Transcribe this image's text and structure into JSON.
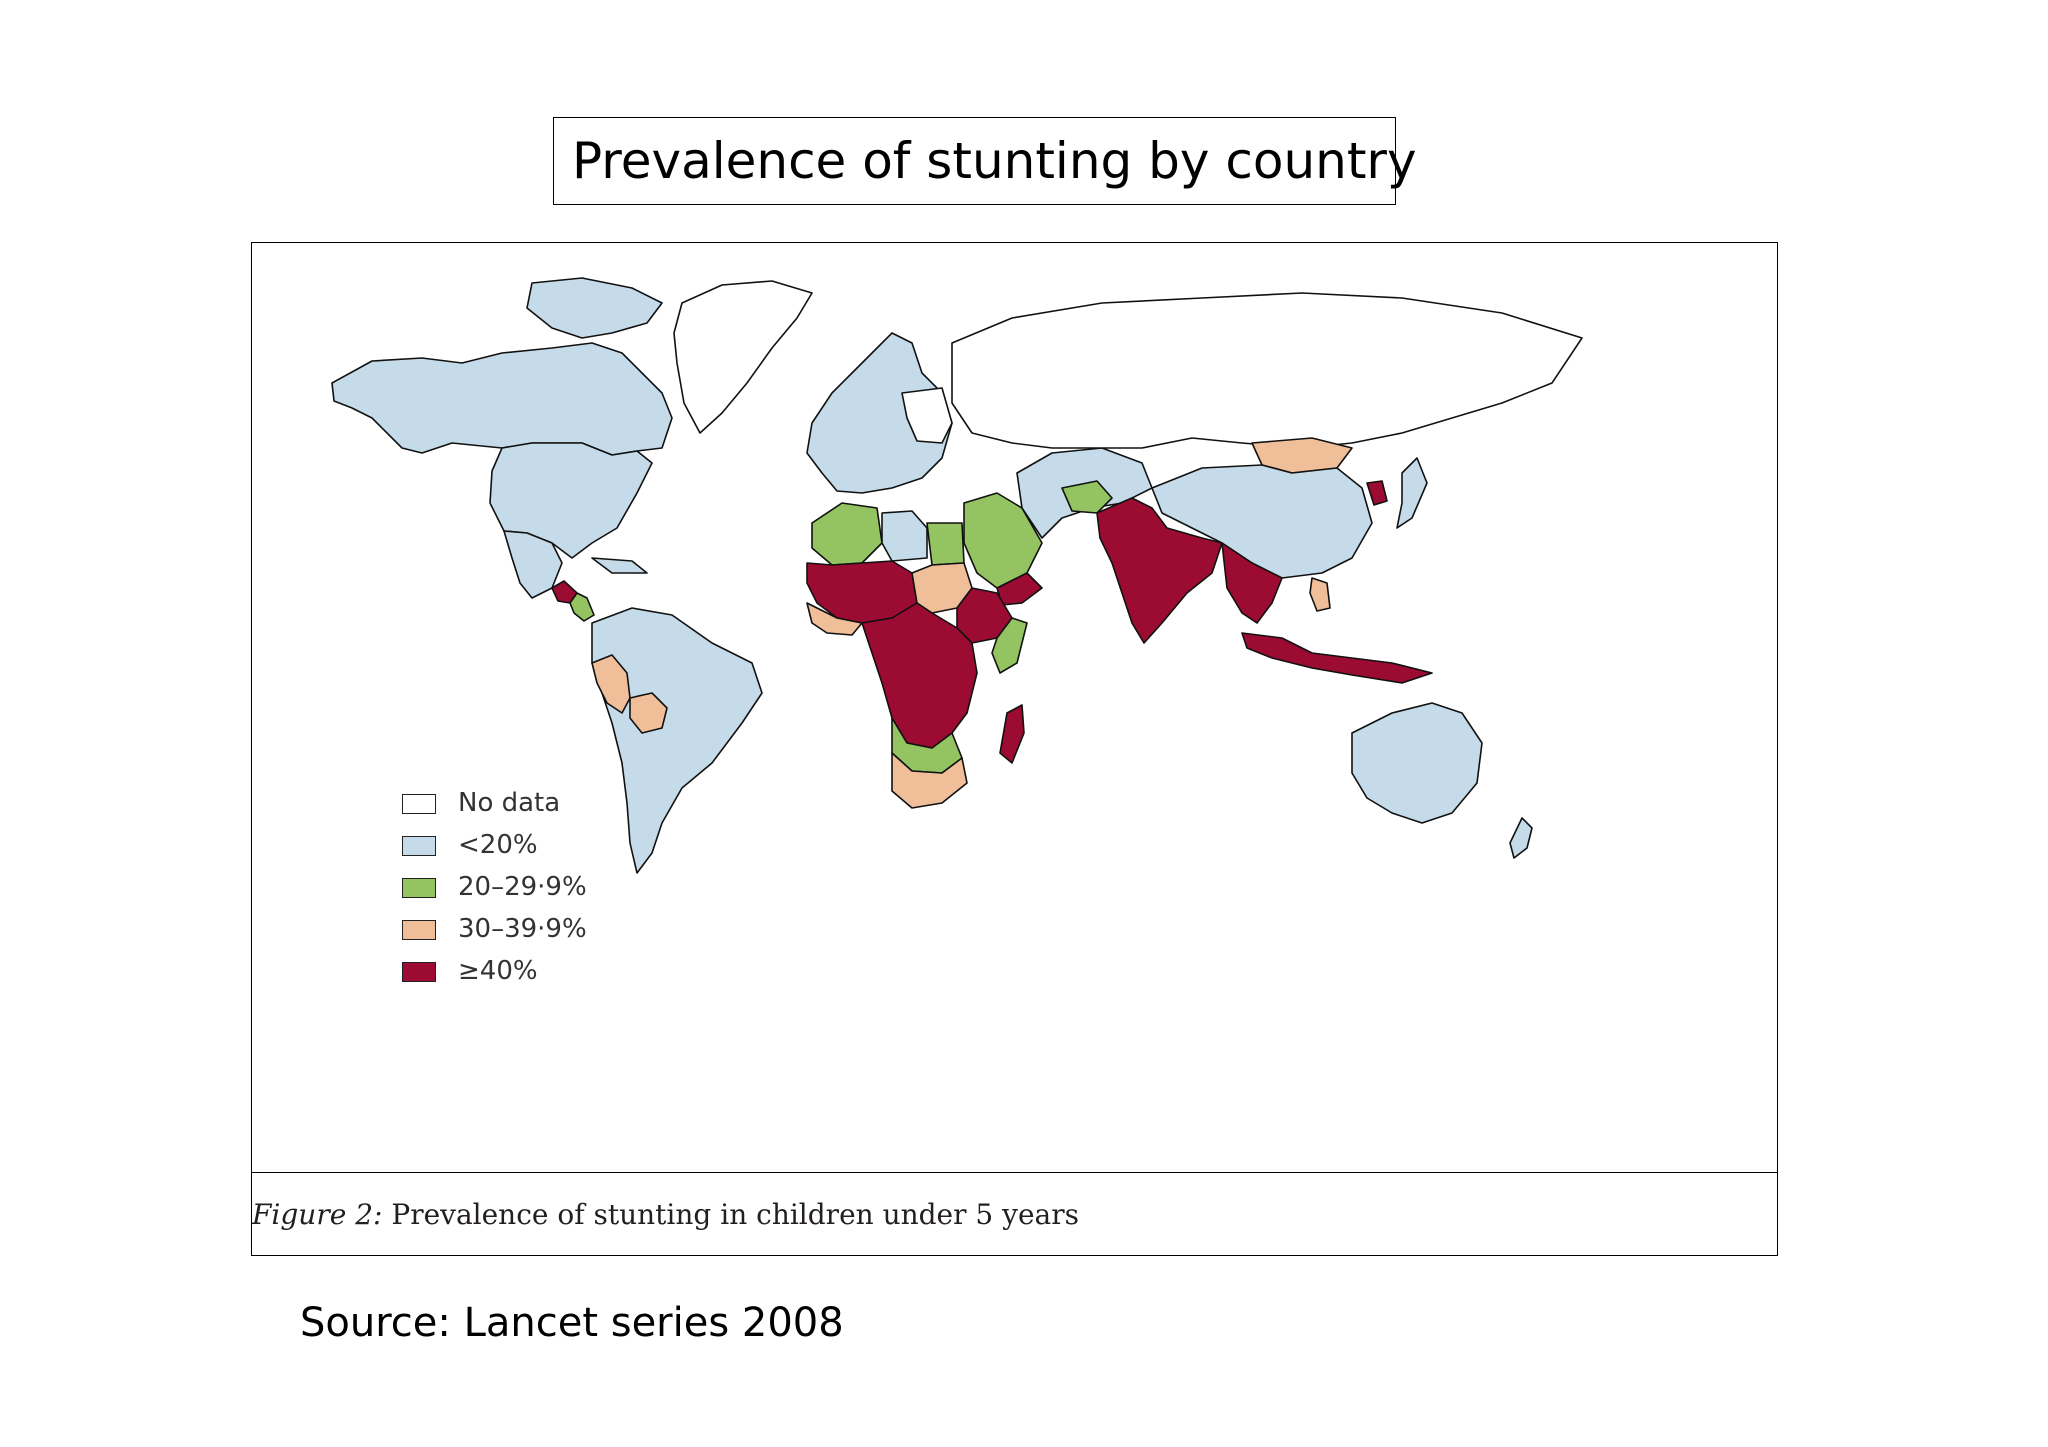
{
  "slide": {
    "title": "Prevalence of stunting by country",
    "source": "Source: Lancet series 2008"
  },
  "figure": {
    "caption_label": "Figure 2:",
    "caption_text": " Prevalence of stunting in children under 5 years"
  },
  "legend": {
    "items": [
      {
        "label": "No data",
        "color": "#ffffff"
      },
      {
        "label": "<20%",
        "color": "#c5dbe9"
      },
      {
        "label": "20–29·9%",
        "color": "#93c461"
      },
      {
        "label": "30–39·9%",
        "color": "#f0bf9a"
      },
      {
        "label": "≥40%",
        "color": "#9b0b32"
      }
    ]
  },
  "map": {
    "outline_color": "#111111",
    "categories": {
      "no_data": "#ffffff",
      "lt20": "#c5dbe9",
      "p20_29": "#93c461",
      "p30_39": "#f0bf9a",
      "ge40": "#9b0b32"
    }
  }
}
